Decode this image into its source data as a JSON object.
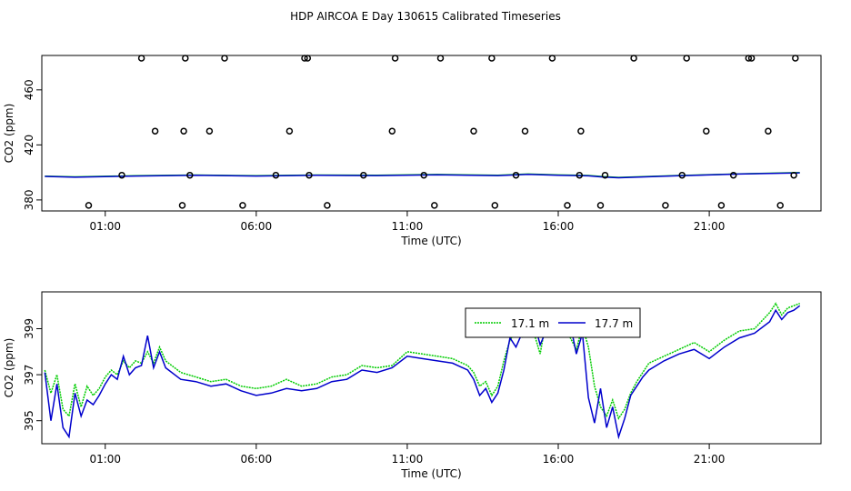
{
  "title": "HDP AIRCOA E  Day 130615  Calibrated Timeseries",
  "colors": {
    "green": "#00cc00",
    "blue": "#0000cc",
    "axis": "#000000"
  },
  "chart_data": [
    {
      "type": "scatter",
      "xlabel": "Time (UTC)",
      "ylabel": "CO2 (ppm)",
      "x_ticks": [
        1,
        6,
        11,
        16,
        21
      ],
      "x_tick_labels": [
        "01:00",
        "06:00",
        "11:00",
        "16:00",
        "21:00"
      ],
      "xlim": [
        -1.1,
        24.7
      ],
      "y_ticks": [
        380,
        420,
        460
      ],
      "y_tick_labels": [
        "380",
        "420",
        "460"
      ],
      "ylim": [
        372,
        485
      ],
      "series": [
        {
          "role": "points",
          "x": [
            0.45,
            1.55,
            2.2,
            2.65,
            3.8,
            3.55,
            3.6,
            3.65,
            4.45,
            4.95,
            5.55,
            6.65,
            7.1,
            7.6,
            7.7,
            7.75,
            8.35,
            9.55,
            10.5,
            10.6,
            11.55,
            11.9,
            12.1,
            13.2,
            13.8,
            13.9,
            14.6,
            14.9,
            15.8,
            16.3,
            16.7,
            16.75,
            17.4,
            17.55,
            18.5,
            19.55,
            20.1,
            20.25,
            20.9,
            21.4,
            21.8,
            22.3,
            22.4,
            22.95,
            23.35,
            23.8,
            23.85
          ],
          "y": [
            376,
            398,
            483,
            430,
            398,
            376,
            430,
            483,
            430,
            483,
            376,
            398,
            430,
            483,
            483,
            398,
            376,
            398,
            430,
            483,
            398,
            376,
            483,
            430,
            483,
            376,
            398,
            430,
            483,
            376,
            398,
            430,
            376,
            398,
            483,
            376,
            398,
            483,
            430,
            376,
            398,
            483,
            483,
            430,
            376,
            398,
            483
          ]
        },
        {
          "role": "green-line",
          "x": [
            -1,
            0,
            2,
            4,
            6,
            8,
            10,
            12,
            14,
            15,
            16,
            17,
            17.5,
            18,
            20,
            22,
            24
          ],
          "y": [
            397.3,
            396.8,
            397.6,
            398.1,
            397.6,
            398.1,
            397.9,
            398.5,
            397.9,
            398.8,
            398.2,
            397.8,
            396.9,
            396.4,
            397.8,
            398.9,
            399.9
          ]
        },
        {
          "role": "blue-line",
          "x": [
            -1,
            0,
            2,
            4,
            6,
            8,
            10,
            12,
            14,
            15,
            16,
            17,
            17.5,
            18,
            20,
            22,
            24
          ],
          "y": [
            397.1,
            396.5,
            397.4,
            397.9,
            397.4,
            397.9,
            397.7,
            398.3,
            397.7,
            398.6,
            398.0,
            397.5,
            396.6,
            396.1,
            397.6,
            398.8,
            399.7
          ]
        }
      ]
    },
    {
      "type": "line",
      "xlabel": "Time (UTC)",
      "ylabel": "CO2 (ppm)",
      "x_ticks": [
        1,
        6,
        11,
        16,
        21
      ],
      "x_tick_labels": [
        "01:00",
        "06:00",
        "11:00",
        "16:00",
        "21:00"
      ],
      "xlim": [
        -1.1,
        24.7
      ],
      "y_ticks": [
        395,
        397,
        399
      ],
      "y_tick_labels": [
        "395",
        "397",
        "399"
      ],
      "ylim": [
        394.0,
        400.6
      ],
      "legend": {
        "position": "top-center",
        "entries": [
          "17.1 m",
          "17.7 m"
        ]
      },
      "series": [
        {
          "name": "17.1 m",
          "color": "#00cc00",
          "x": [
            -1.0,
            -0.8,
            -0.6,
            -0.4,
            -0.2,
            0.0,
            0.2,
            0.4,
            0.6,
            0.8,
            1.0,
            1.2,
            1.4,
            1.6,
            1.8,
            2.0,
            2.2,
            2.4,
            2.6,
            2.8,
            3.0,
            3.5,
            4.0,
            4.5,
            5.0,
            5.5,
            6.0,
            6.5,
            7.0,
            7.5,
            8.0,
            8.5,
            9.0,
            9.5,
            10.0,
            10.5,
            11.0,
            11.5,
            12.0,
            12.5,
            13.0,
            13.2,
            13.4,
            13.6,
            13.8,
            14.0,
            14.2,
            14.4,
            14.6,
            14.8,
            15.0,
            15.2,
            15.4,
            15.6,
            15.8,
            16.0,
            16.2,
            16.4,
            16.6,
            16.8,
            17.0,
            17.2,
            17.4,
            17.6,
            17.8,
            18.0,
            18.2,
            18.4,
            18.6,
            18.8,
            19.0,
            19.5,
            20.0,
            20.5,
            21.0,
            21.5,
            22.0,
            22.5,
            23.0,
            23.2,
            23.4,
            23.6,
            23.8,
            24.0
          ],
          "y": [
            397.2,
            396.2,
            397.0,
            395.5,
            395.2,
            396.6,
            395.6,
            396.5,
            396.1,
            396.4,
            396.9,
            397.2,
            397.0,
            397.6,
            397.3,
            397.6,
            397.5,
            398.0,
            397.5,
            398.2,
            397.6,
            397.1,
            396.9,
            396.7,
            396.8,
            396.5,
            396.4,
            396.5,
            396.8,
            396.5,
            396.6,
            396.9,
            397.0,
            397.4,
            397.3,
            397.4,
            398.0,
            397.9,
            397.8,
            397.7,
            397.4,
            397.1,
            396.5,
            396.7,
            396.1,
            396.5,
            397.6,
            398.5,
            398.9,
            398.6,
            399.2,
            398.8,
            397.9,
            399.4,
            398.8,
            399.4,
            399.0,
            398.6,
            398.1,
            399.1,
            398.2,
            396.5,
            395.6,
            395.2,
            395.9,
            395.1,
            395.5,
            396.2,
            396.7,
            397.1,
            397.5,
            397.8,
            398.1,
            398.4,
            398.0,
            398.5,
            398.9,
            399.0,
            399.7,
            400.1,
            399.6,
            399.9,
            400.0,
            400.1
          ]
        },
        {
          "name": "17.7 m",
          "color": "#0000cc",
          "x": [
            -1.0,
            -0.8,
            -0.6,
            -0.4,
            -0.2,
            0.0,
            0.2,
            0.4,
            0.6,
            0.8,
            1.0,
            1.2,
            1.4,
            1.6,
            1.8,
            2.0,
            2.2,
            2.4,
            2.6,
            2.8,
            3.0,
            3.5,
            4.0,
            4.5,
            5.0,
            5.5,
            6.0,
            6.5,
            7.0,
            7.5,
            8.0,
            8.5,
            9.0,
            9.5,
            10.0,
            10.5,
            11.0,
            11.5,
            12.0,
            12.5,
            13.0,
            13.2,
            13.4,
            13.6,
            13.8,
            14.0,
            14.2,
            14.4,
            14.6,
            14.8,
            15.0,
            15.2,
            15.4,
            15.6,
            15.8,
            16.0,
            16.2,
            16.4,
            16.6,
            16.8,
            17.0,
            17.2,
            17.4,
            17.6,
            17.8,
            18.0,
            18.2,
            18.4,
            18.6,
            18.8,
            19.0,
            19.5,
            20.0,
            20.5,
            21.0,
            21.5,
            22.0,
            22.5,
            23.0,
            23.2,
            23.4,
            23.6,
            23.8,
            24.0
          ],
          "y": [
            397.1,
            395.0,
            396.6,
            394.7,
            394.3,
            396.2,
            395.2,
            395.9,
            395.7,
            396.1,
            396.6,
            397.0,
            396.8,
            397.8,
            397.0,
            397.3,
            397.4,
            398.7,
            397.3,
            398.0,
            397.3,
            396.8,
            396.7,
            396.5,
            396.6,
            396.3,
            396.1,
            396.2,
            396.4,
            396.3,
            396.4,
            396.7,
            396.8,
            397.2,
            397.1,
            397.3,
            397.8,
            397.7,
            397.6,
            397.5,
            397.2,
            396.8,
            396.1,
            396.4,
            395.8,
            396.2,
            397.2,
            398.6,
            398.2,
            398.8,
            398.9,
            399.3,
            398.3,
            398.9,
            399.2,
            399.3,
            399.3,
            399.2,
            397.9,
            398.8,
            396.0,
            394.9,
            396.4,
            394.7,
            395.6,
            394.3,
            395.1,
            396.1,
            396.5,
            396.9,
            397.2,
            397.6,
            397.9,
            398.1,
            397.7,
            398.2,
            398.6,
            398.8,
            399.3,
            399.8,
            399.4,
            399.7,
            399.8,
            400.0
          ]
        }
      ]
    }
  ]
}
